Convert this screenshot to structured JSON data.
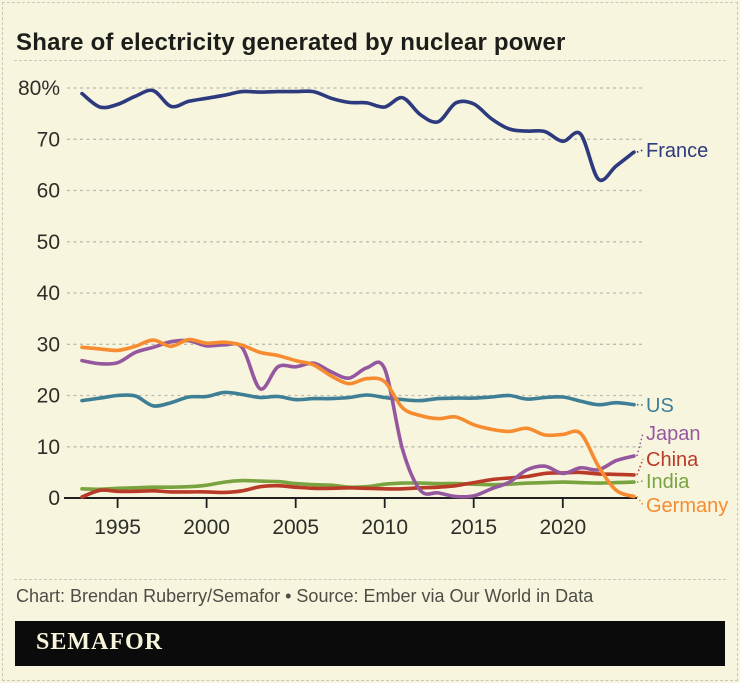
{
  "title": "Share of electricity generated by nuclear power",
  "credit": "Chart: Brendan Ruberry/Semafor • Source: Ember via Our World in Data",
  "logo": "SEMAFOR",
  "colors": {
    "background": "#f8f5df",
    "grid": "#bcbcae",
    "axis": "#1f1f1f",
    "tick_text": "#2e2e29",
    "title_text": "#1d1d19",
    "credit_text": "#4d4d46",
    "logo_bar": "#0b0b0b",
    "logo_text": "#f8f4dc"
  },
  "chart_data": {
    "type": "line",
    "title": "Share of electricity generated by nuclear power",
    "xlabel": "",
    "ylabel": "",
    "xlim": [
      1993,
      2024
    ],
    "ylim": [
      0,
      80
    ],
    "grid": "horizontal-dashed",
    "grid_color": "#bcbcae",
    "axis_color": "#1f1f1f",
    "legend_position": "right-end-labels",
    "x": [
      1993,
      1994,
      1995,
      1996,
      1997,
      1998,
      1999,
      2000,
      2001,
      2002,
      2003,
      2004,
      2005,
      2006,
      2007,
      2008,
      2009,
      2010,
      2011,
      2012,
      2013,
      2014,
      2015,
      2016,
      2017,
      2018,
      2019,
      2020,
      2021,
      2022,
      2023,
      2024
    ],
    "xticks": [
      1995,
      2000,
      2005,
      2010,
      2015,
      2020
    ],
    "yticks": [
      {
        "value": 80,
        "label": "80%"
      },
      {
        "value": 70,
        "label": "70"
      },
      {
        "value": 60,
        "label": "60"
      },
      {
        "value": 50,
        "label": "50"
      },
      {
        "value": 40,
        "label": "40"
      },
      {
        "value": 30,
        "label": "30"
      },
      {
        "value": 20,
        "label": "20"
      },
      {
        "value": 10,
        "label": "10"
      },
      {
        "value": 0,
        "label": "0"
      }
    ],
    "series": [
      {
        "name": "US",
        "label": "US",
        "color": "#3e7f96",
        "values": [
          19.0,
          19.5,
          20.0,
          19.9,
          18.0,
          18.6,
          19.7,
          19.8,
          20.6,
          20.2,
          19.6,
          19.8,
          19.2,
          19.4,
          19.4,
          19.6,
          20.1,
          19.6,
          19.2,
          19.0,
          19.4,
          19.5,
          19.5,
          19.7,
          20.0,
          19.3,
          19.6,
          19.7,
          18.9,
          18.2,
          18.6,
          18.2
        ]
      },
      {
        "name": "India",
        "label": "India",
        "color": "#79a33f",
        "values": [
          1.8,
          1.7,
          1.9,
          2.0,
          2.1,
          2.1,
          2.2,
          2.5,
          3.1,
          3.4,
          3.3,
          3.2,
          2.8,
          2.6,
          2.5,
          2.1,
          2.2,
          2.7,
          2.9,
          2.9,
          2.8,
          2.8,
          2.7,
          2.6,
          2.7,
          2.9,
          3.0,
          3.1,
          3.0,
          2.9,
          3.0,
          3.1
        ]
      },
      {
        "name": "China",
        "label": "China",
        "color": "#ba3a28",
        "values": [
          0.2,
          1.5,
          1.3,
          1.3,
          1.4,
          1.2,
          1.2,
          1.2,
          1.1,
          1.4,
          2.2,
          2.4,
          2.1,
          1.9,
          1.9,
          2.0,
          1.9,
          1.8,
          1.8,
          2.0,
          2.1,
          2.4,
          3.0,
          3.6,
          3.9,
          4.2,
          4.8,
          4.9,
          5.0,
          4.7,
          4.6,
          4.5
        ]
      },
      {
        "name": "Japan",
        "label": "Japan",
        "color": "#95589e",
        "values": [
          26.8,
          26.2,
          26.4,
          28.4,
          29.4,
          30.5,
          30.7,
          29.7,
          29.9,
          29.3,
          21.3,
          25.6,
          25.6,
          26.3,
          24.6,
          23.4,
          25.4,
          25.2,
          9.5,
          1.5,
          1.0,
          0.3,
          0.4,
          1.8,
          3.1,
          5.5,
          6.2,
          4.8,
          5.9,
          5.5,
          7.3,
          8.2
        ]
      },
      {
        "name": "Germany",
        "label": "Germany",
        "color": "#f68b2f",
        "values": [
          29.4,
          29.1,
          28.8,
          29.6,
          30.8,
          29.6,
          30.9,
          30.2,
          30.4,
          29.8,
          28.4,
          27.8,
          26.8,
          26.0,
          23.8,
          22.3,
          23.3,
          22.7,
          17.6,
          16.1,
          15.5,
          15.8,
          14.3,
          13.4,
          13.0,
          13.6,
          12.3,
          12.4,
          12.6,
          6.2,
          1.5,
          0.3
        ]
      },
      {
        "name": "France",
        "label": "France",
        "color": "#2d3a7d",
        "values": [
          78.9,
          76.3,
          76.8,
          78.4,
          79.5,
          76.4,
          77.4,
          78.0,
          78.6,
          79.3,
          79.2,
          79.3,
          79.3,
          79.3,
          78.0,
          77.2,
          77.1,
          76.3,
          78.1,
          74.8,
          73.4,
          77.1,
          76.9,
          74.0,
          72.0,
          71.6,
          71.5,
          69.6,
          71.0,
          62.2,
          64.8,
          67.5
        ]
      }
    ]
  }
}
